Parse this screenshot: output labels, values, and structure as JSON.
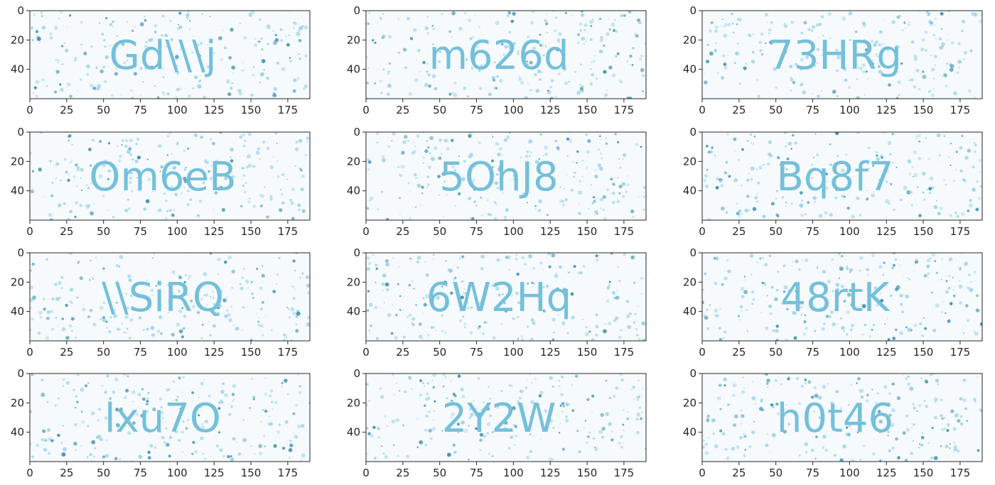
{
  "figure": {
    "x_ticks": [
      "0",
      "25",
      "50",
      "75",
      "100",
      "125",
      "150",
      "175"
    ],
    "y_ticks": [
      "0",
      "20",
      "40"
    ],
    "colors": {
      "background": "#ffffff",
      "panel_bg": "#f6fafc",
      "ink": "#75c0db",
      "speckle_light": "#9fd3e8",
      "speckle_dark": "#3e8faf",
      "axis": "#262626"
    },
    "panels": [
      {
        "label": "Gd\\\\\\j"
      },
      {
        "label": "m626d"
      },
      {
        "label": "73HRg"
      },
      {
        "label": "Om6eB"
      },
      {
        "label": "5OhJ8"
      },
      {
        "label": "Bq8f7"
      },
      {
        "label": "\\\\SiRQ"
      },
      {
        "label": "6W2Hq"
      },
      {
        "label": "48rtK"
      },
      {
        "label": "lxu7O"
      },
      {
        "label": "2Y2W"
      },
      {
        "label": "h0t46"
      }
    ]
  }
}
